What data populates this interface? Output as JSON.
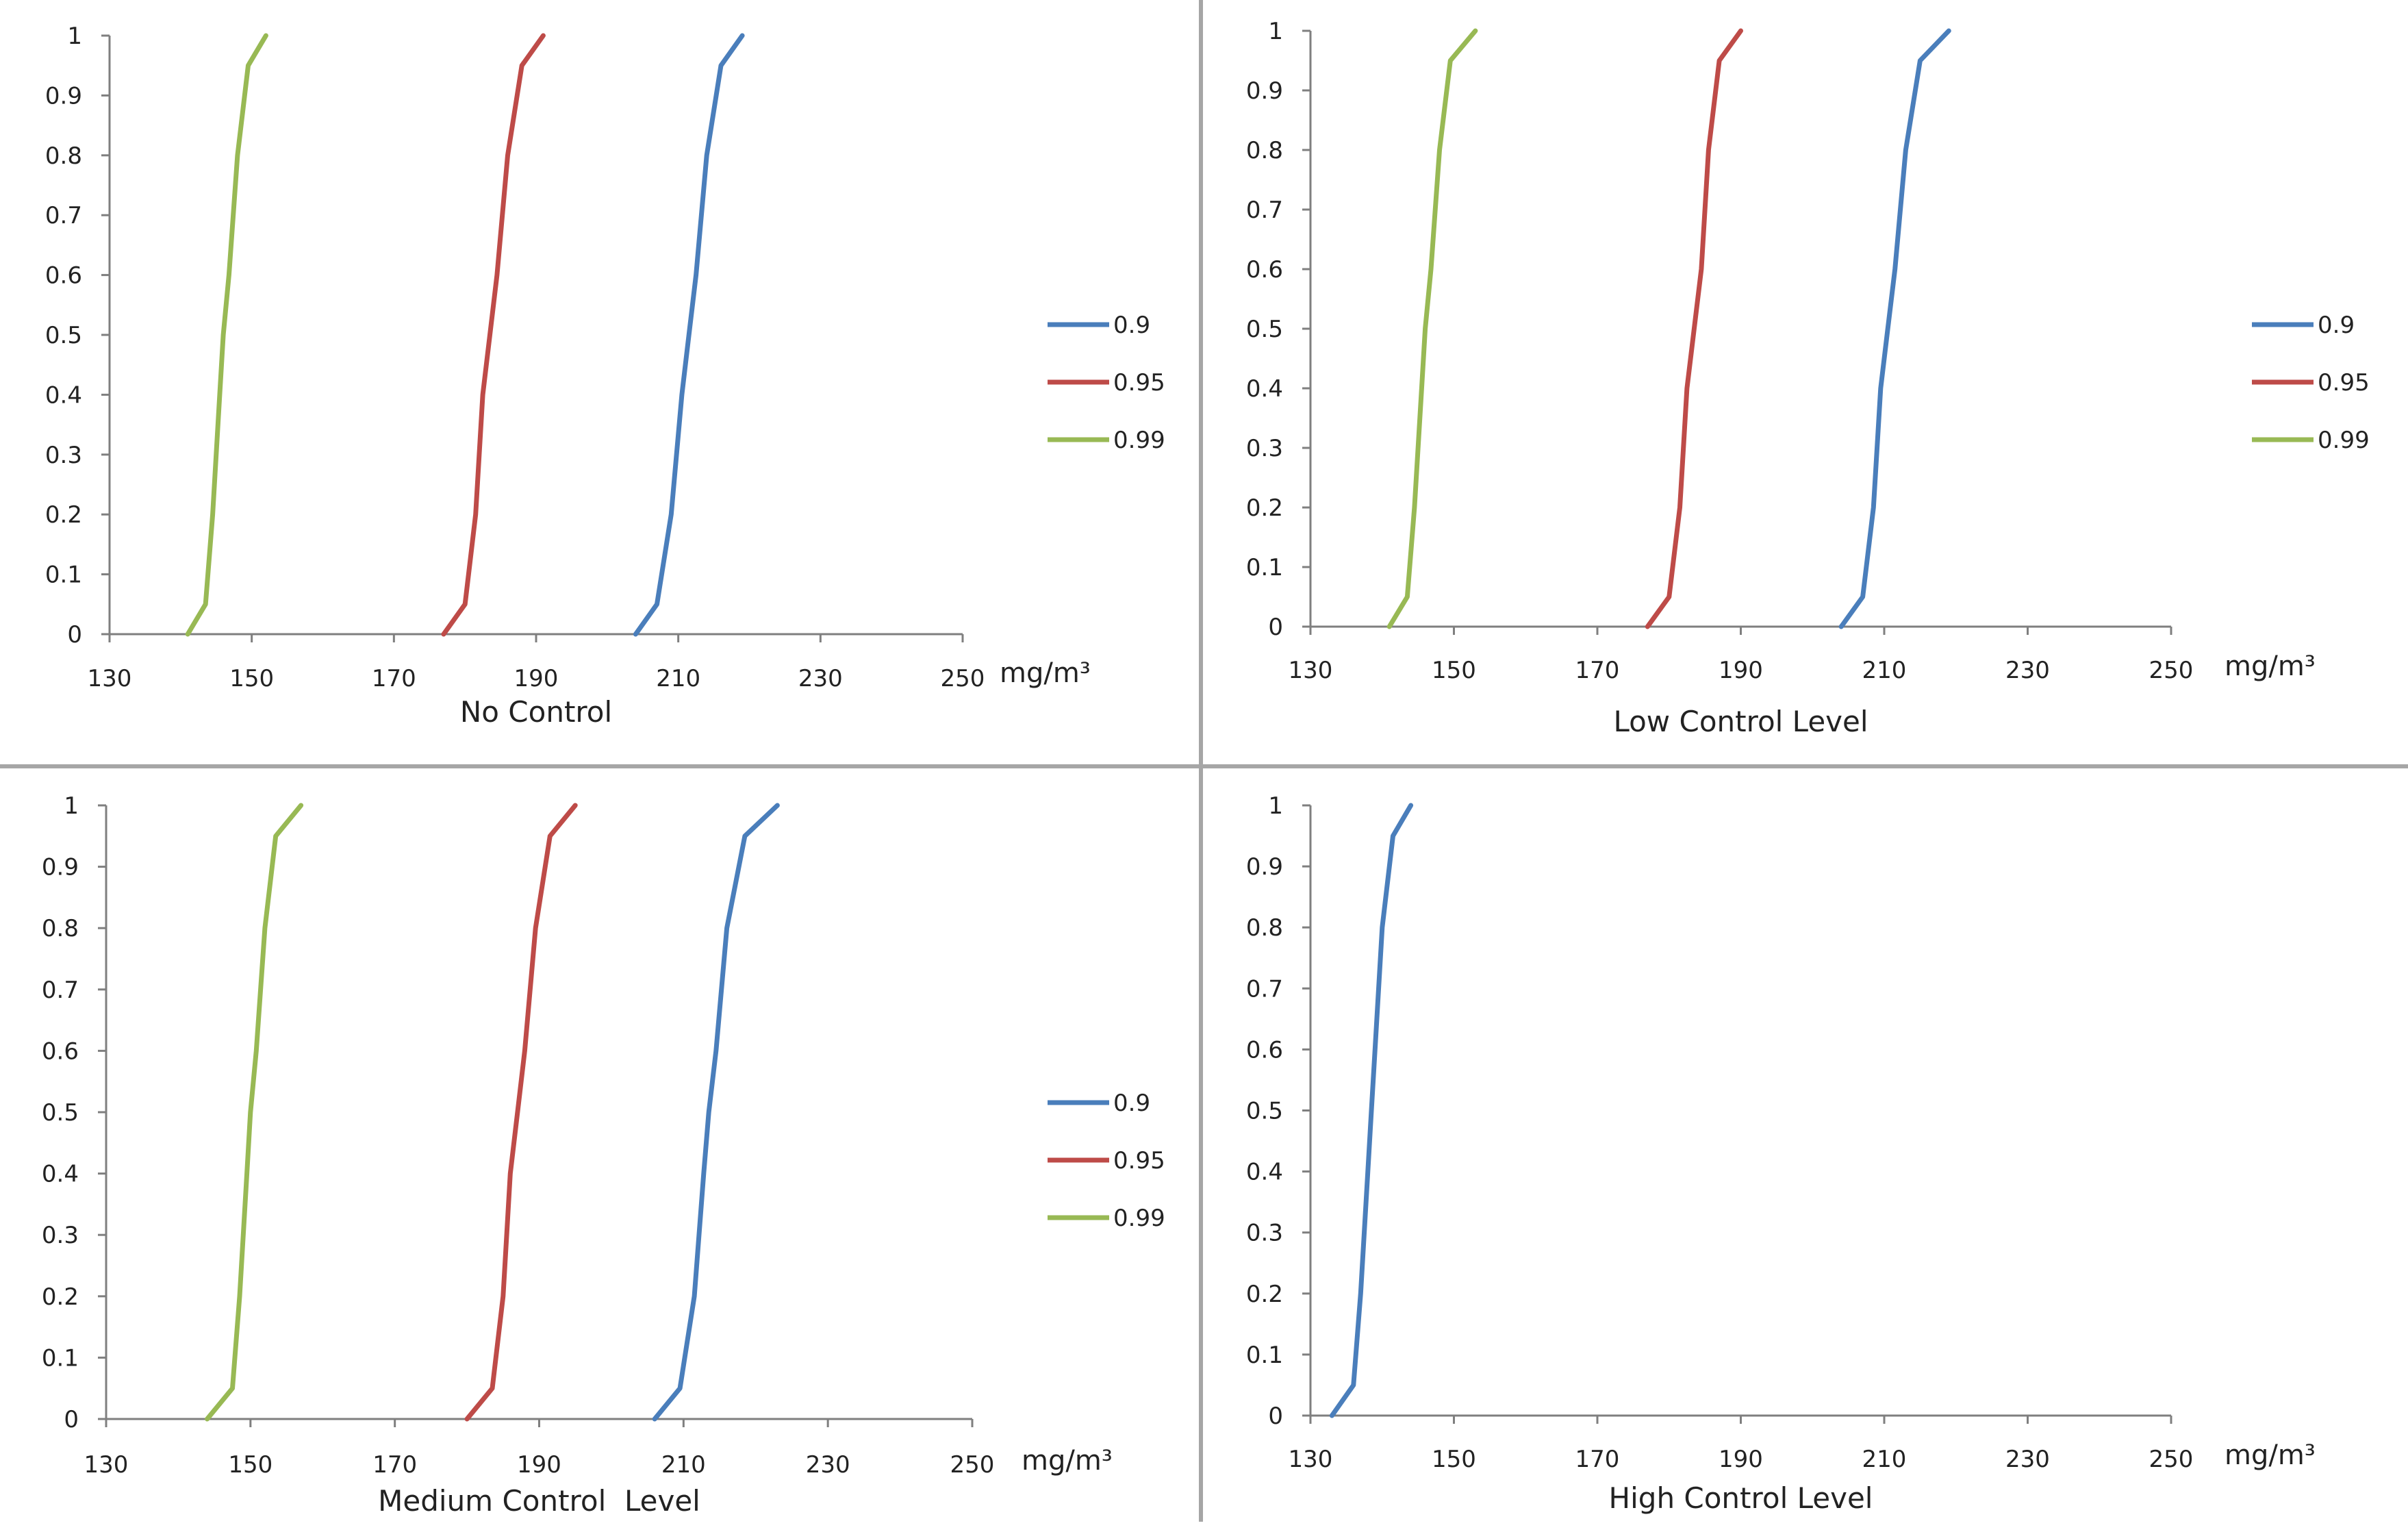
{
  "chart_data": [
    {
      "type": "line",
      "title": "No Control",
      "x_unit": "mg/m³",
      "xlim": [
        130,
        250
      ],
      "ylim": [
        0,
        1
      ],
      "x_ticks": [
        "130",
        "150",
        "170",
        "190",
        "210",
        "230",
        "250"
      ],
      "y_ticks": [
        "0",
        "0.1",
        "0.2",
        "0.3",
        "0.4",
        "0.5",
        "0.6",
        "0.7",
        "0.8",
        "0.9",
        "1"
      ],
      "legend_position": "right",
      "series": [
        {
          "name": "0.9",
          "color": "#4a7ebb",
          "x": [
            204,
            207,
            209,
            210.5,
            211.5,
            212.5,
            214,
            216,
            219
          ],
          "y": [
            0,
            0.05,
            0.2,
            0.4,
            0.5,
            0.6,
            0.8,
            0.95,
            1
          ]
        },
        {
          "name": "0.95",
          "color": "#be4b48",
          "x": [
            177,
            180,
            181.5,
            182.5,
            183.5,
            184.5,
            186,
            188,
            191
          ],
          "y": [
            0,
            0.05,
            0.2,
            0.4,
            0.5,
            0.6,
            0.8,
            0.95,
            1
          ]
        },
        {
          "name": "0.99",
          "color": "#98b954",
          "x": [
            141,
            143.5,
            144.5,
            145.5,
            146,
            146.8,
            148,
            149.5,
            152
          ],
          "y": [
            0,
            0.05,
            0.2,
            0.4,
            0.5,
            0.6,
            0.8,
            0.95,
            1
          ]
        }
      ]
    },
    {
      "type": "line",
      "title": "Low Control Level",
      "x_unit": "mg/m³",
      "xlim": [
        130,
        250
      ],
      "ylim": [
        0,
        1
      ],
      "x_ticks": [
        "130",
        "150",
        "170",
        "190",
        "210",
        "230",
        "250"
      ],
      "y_ticks": [
        "0",
        "0.1",
        "0.2",
        "0.3",
        "0.4",
        "0.5",
        "0.6",
        "0.7",
        "0.8",
        "0.9",
        "1"
      ],
      "legend_position": "right",
      "series": [
        {
          "name": "0.9",
          "color": "#4a7ebb",
          "x": [
            204,
            207,
            208.5,
            209.5,
            210.5,
            211.5,
            213,
            215,
            219
          ],
          "y": [
            0,
            0.05,
            0.2,
            0.4,
            0.5,
            0.6,
            0.8,
            0.95,
            1
          ]
        },
        {
          "name": "0.95",
          "color": "#be4b48",
          "x": [
            177,
            180,
            181.5,
            182.5,
            183.5,
            184.5,
            185.5,
            187,
            190
          ],
          "y": [
            0,
            0.05,
            0.2,
            0.4,
            0.5,
            0.6,
            0.8,
            0.95,
            1
          ]
        },
        {
          "name": "0.99",
          "color": "#98b954",
          "x": [
            141,
            143.5,
            144.5,
            145.5,
            146,
            146.8,
            148,
            149.5,
            153
          ],
          "y": [
            0,
            0.05,
            0.2,
            0.4,
            0.5,
            0.6,
            0.8,
            0.95,
            1
          ]
        }
      ]
    },
    {
      "type": "line",
      "title": "Medium Control  Level",
      "x_unit": "mg/m³",
      "xlim": [
        130,
        250
      ],
      "ylim": [
        0,
        1
      ],
      "x_ticks": [
        "130",
        "150",
        "170",
        "190",
        "210",
        "230",
        "250"
      ],
      "y_ticks": [
        "0",
        "0.1",
        "0.2",
        "0.3",
        "0.4",
        "0.5",
        "0.6",
        "0.7",
        "0.8",
        "0.9",
        "1"
      ],
      "legend_position": "right",
      "series": [
        {
          "name": "0.9",
          "color": "#4a7ebb",
          "x": [
            206,
            209.5,
            211.5,
            212.8,
            213.5,
            214.5,
            216,
            218.5,
            223
          ],
          "y": [
            0,
            0.05,
            0.2,
            0.4,
            0.5,
            0.6,
            0.8,
            0.95,
            1
          ]
        },
        {
          "name": "0.95",
          "color": "#be4b48",
          "x": [
            180,
            183.5,
            185,
            186,
            187,
            188,
            189.5,
            191.5,
            195
          ],
          "y": [
            0,
            0.05,
            0.2,
            0.4,
            0.5,
            0.6,
            0.8,
            0.95,
            1
          ]
        },
        {
          "name": "0.99",
          "color": "#98b954",
          "x": [
            144,
            147.5,
            148.5,
            149.5,
            150,
            150.8,
            152,
            153.5,
            157
          ],
          "y": [
            0,
            0.05,
            0.2,
            0.4,
            0.5,
            0.6,
            0.8,
            0.95,
            1
          ]
        }
      ]
    },
    {
      "type": "line",
      "title": "High Control Level",
      "x_unit": "mg/m³",
      "xlim": [
        130,
        250
      ],
      "ylim": [
        0,
        1
      ],
      "x_ticks": [
        "130",
        "150",
        "170",
        "190",
        "210",
        "230",
        "250"
      ],
      "y_ticks": [
        "0",
        "0.1",
        "0.2",
        "0.3",
        "0.4",
        "0.5",
        "0.6",
        "0.7",
        "0.8",
        "0.9",
        "1"
      ],
      "legend_position": "none",
      "series": [
        {
          "name": "",
          "color": "#4a7ebb",
          "x": [
            133,
            136,
            137,
            138,
            138.5,
            139,
            140,
            141.5,
            144
          ],
          "y": [
            0,
            0.05,
            0.2,
            0.4,
            0.5,
            0.6,
            0.8,
            0.95,
            1
          ]
        }
      ]
    }
  ]
}
